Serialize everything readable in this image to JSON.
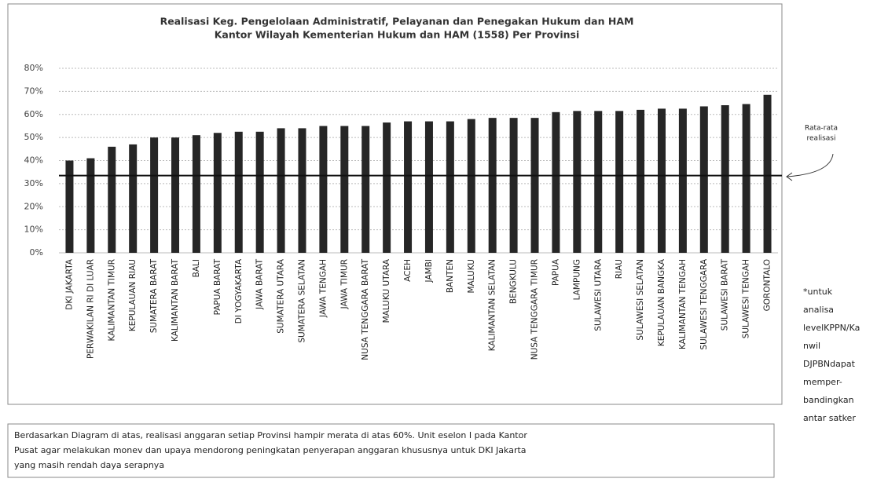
{
  "chart_data": {
    "type": "bar",
    "title": [
      "Realisasi Keg. Pengelolaan Administratif, Pelayanan dan Penegakan Hukum dan HAM",
      "Kantor Wilayah Kementerian Hukum dan HAM (1558) Per Provinsi"
    ],
    "categories": [
      "DKI JAKARTA",
      "PERWAKILAN RI DI LUAR",
      "KALIMANTAN TIMUR",
      "KEPULAUAN RIAU",
      "SUMATERA BARAT",
      "KALIMANTAN BARAT",
      "BALI",
      "PAPUA BARAT",
      "DI YOGYAKARTA",
      "JAWA BARAT",
      "SUMATERA UTARA",
      "SUMATERA SELATAN",
      "JAWA TENGAH",
      "JAWA TIMUR",
      "NUSA TENGGARA BARAT",
      "MALUKU UTARA",
      "ACEH",
      "JAMBI",
      "BANTEN",
      "MALUKU",
      "KALIMANTAN SELATAN",
      "BENGKULU",
      "NUSA TENGGARA TIMUR",
      "PAPUA",
      "LAMPUNG",
      "SULAWESI UTARA",
      "RIAU",
      "SULAWESI SELATAN",
      "KEPULAUAN BANGKA",
      "KALIMANTAN TENGAH",
      "SULAWESI TENGGARA",
      "SULAWESI BARAT",
      "SULAWESI TENGAH",
      "GORONTALO"
    ],
    "values": [
      40,
      41,
      46,
      47,
      50,
      50,
      51,
      52,
      52.5,
      52.5,
      54,
      54,
      55,
      55,
      55,
      56.5,
      57,
      57,
      57,
      58,
      58.5,
      58.5,
      58.5,
      61,
      61.5,
      61.5,
      61.5,
      62,
      62.5,
      62.5,
      63.5,
      64,
      64.5,
      68.5
    ],
    "color": "#262626",
    "ylim": [
      0,
      80
    ],
    "yticks": [
      {
        "value": 0,
        "label": "0%"
      },
      {
        "value": 10,
        "label": "10%"
      },
      {
        "value": 20,
        "label": "20%"
      },
      {
        "value": 30,
        "label": "30%"
      },
      {
        "value": 40,
        "label": "40%"
      },
      {
        "value": 50,
        "label": "50%"
      },
      {
        "value": 60,
        "label": "60%"
      },
      {
        "value": 70,
        "label": "70%"
      },
      {
        "value": 80,
        "label": "80%"
      }
    ],
    "grid": true,
    "reference_line": {
      "value": 33.5,
      "label": [
        "Rata-rata",
        "realisasi"
      ]
    }
  },
  "side_note": [
    "*untuk",
    "analisa",
    "levelKPPN/Ka",
    "nwil",
    "DJPBNdapat",
    "memper-",
    "bandingkan",
    "antar satker"
  ],
  "bottom_note": [
    "Berdasarkan Diagram di atas, realisasi anggaran setiap Provinsi hampir merata di atas 60%. Unit eselon I pada Kantor",
    "Pusat agar melakukan monev dan upaya mendorong peningkatan penyerapan anggaran khususnya untuk DKI Jakarta",
    "yang masih rendah daya serapnya"
  ]
}
